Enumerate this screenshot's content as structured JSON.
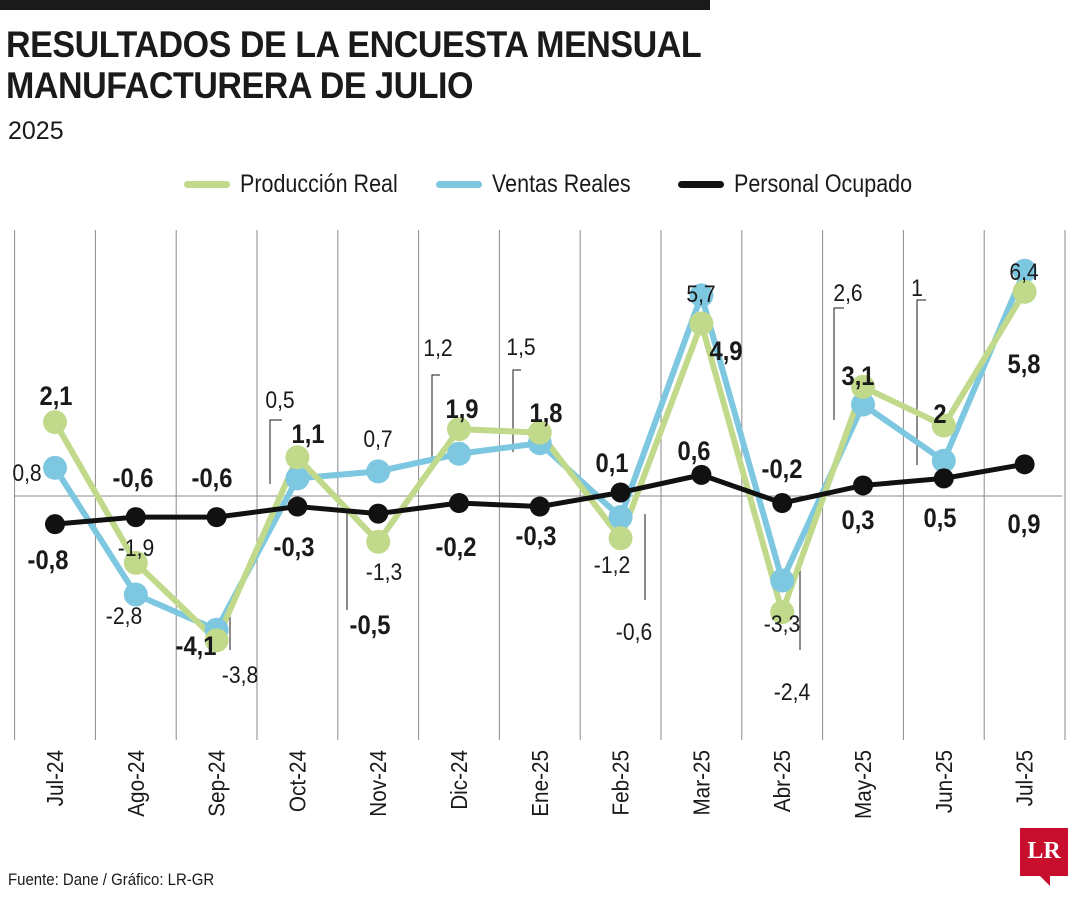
{
  "title_line1": "RESULTADOS DE LA ENCUESTA MENSUAL",
  "title_line2": "MANUFACTURERA DE JULIO",
  "subtitle": "2025",
  "source": "Fuente: Dane / Gráfico: LR-GR",
  "logo_text": "LR",
  "colors": {
    "produccion": "#c1d98a",
    "ventas": "#7dc8e0",
    "personal": "#111111",
    "grid": "#8a8a8a",
    "logo": "#c8102e"
  },
  "chart_data": {
    "type": "line",
    "title": "RESULTADOS DE LA ENCUESTA MENSUAL MANUFACTURERA DE JULIO",
    "subtitle": "2025",
    "categories": [
      "Jul-24",
      "Ago-24",
      "Sep-24",
      "Oct-24",
      "Nov-24",
      "Dic-24",
      "Ene-25",
      "Feb-25",
      "Mar-25",
      "Abr-25",
      "May-25",
      "Jun-25",
      "Jul-25"
    ],
    "ylim": [
      -7,
      9
    ],
    "grid": "vertical",
    "legend_position": "top",
    "series": [
      {
        "name": "Producción Real",
        "color": "#c1d98a",
        "values": [
          2.1,
          -1.9,
          -4.1,
          1.1,
          -1.3,
          1.9,
          1.8,
          -1.2,
          4.9,
          -3.3,
          3.1,
          2.0,
          5.8
        ],
        "labels": [
          "2,1",
          "-1,9",
          "-4,1",
          "1,1",
          "-1,3",
          "1,9",
          "1,8",
          "-1,2",
          "4,9",
          "-3,3",
          "3,1",
          "2",
          "5,8"
        ]
      },
      {
        "name": "Ventas Reales",
        "color": "#7dc8e0",
        "values": [
          0.8,
          -2.8,
          -3.8,
          0.5,
          0.7,
          1.2,
          1.5,
          -0.6,
          5.7,
          -2.4,
          2.6,
          1.0,
          6.4
        ],
        "labels": [
          "0,8",
          "-2,8",
          "-3,8",
          "0,5",
          "0,7",
          "1,2",
          "1,5",
          "-0,6",
          "5,7",
          "-2,4",
          "2,6",
          "1",
          "6,4"
        ]
      },
      {
        "name": "Personal Ocupado",
        "color": "#111111",
        "values": [
          -0.8,
          -0.6,
          -0.6,
          -0.3,
          -0.5,
          -0.2,
          -0.3,
          0.1,
          0.6,
          -0.2,
          0.3,
          0.5,
          0.9
        ],
        "labels": [
          "-0,8",
          "-0,6",
          "-0,6",
          "-0,3",
          "-0,5",
          "-0,2",
          "-0,3",
          "0,1",
          "0,6",
          "-0,2",
          "0,3",
          "0,5",
          "0,9"
        ]
      }
    ]
  }
}
